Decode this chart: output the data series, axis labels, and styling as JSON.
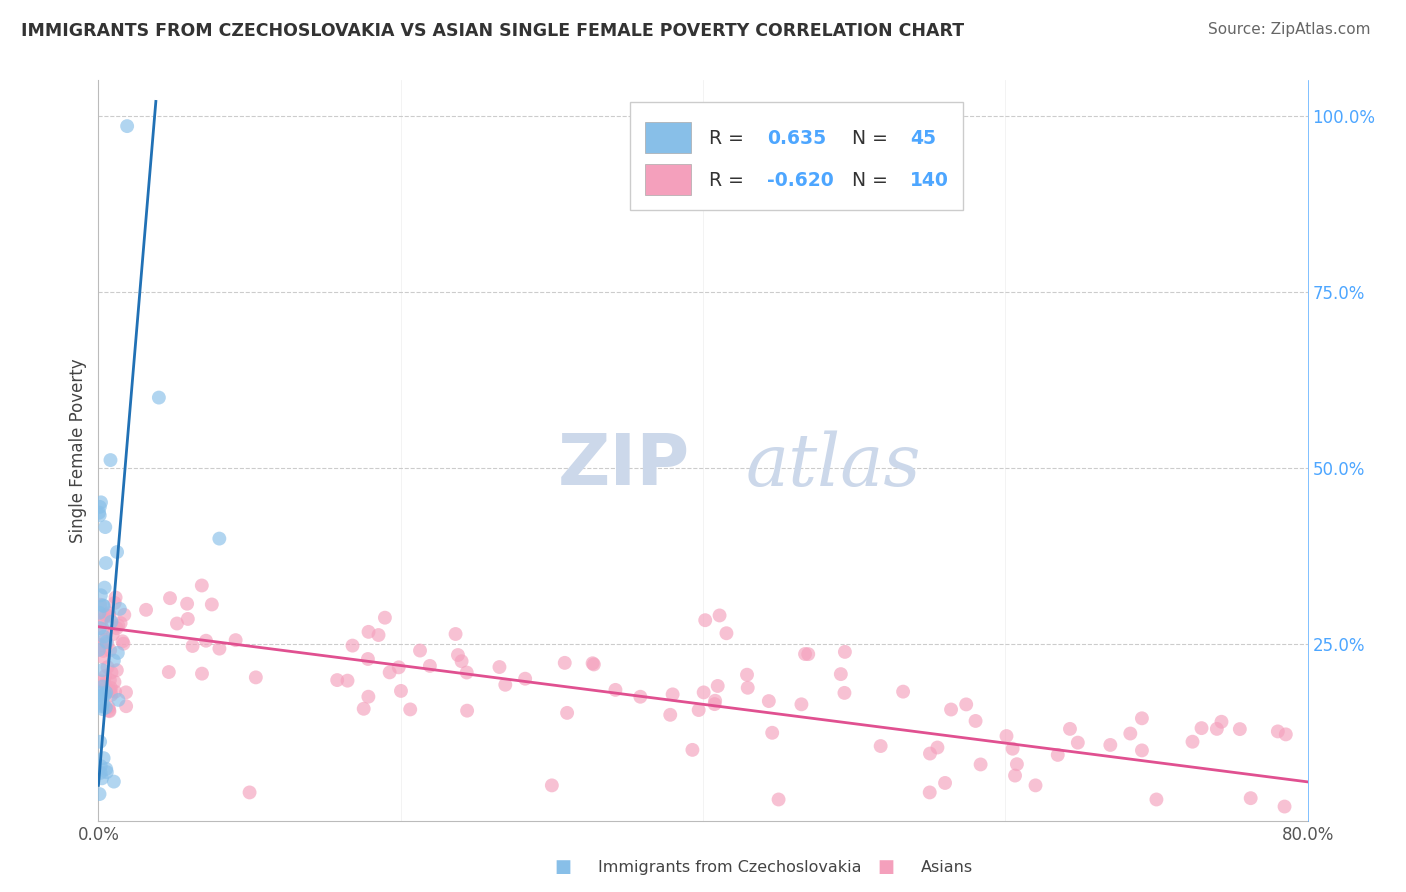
{
  "title": "IMMIGRANTS FROM CZECHOSLOVAKIA VS ASIAN SINGLE FEMALE POVERTY CORRELATION CHART",
  "source": "Source: ZipAtlas.com",
  "ylabel": "Single Female Poverty",
  "legend_labels": [
    "Immigrants from Czechoslovakia",
    "Asians"
  ],
  "blue_R": 0.635,
  "blue_N": 45,
  "pink_R": -0.62,
  "pink_N": 140,
  "blue_color": "#88bfe8",
  "pink_color": "#f4a0bc",
  "blue_line_color": "#2171b5",
  "pink_line_color": "#e05090",
  "background_color": "#ffffff",
  "grid_color": "#cccccc",
  "title_color": "#333333",
  "watermark_color": "#ccd8ea",
  "right_axis_color": "#4da6ff",
  "figsize": [
    14.06,
    8.92
  ],
  "dpi": 100
}
